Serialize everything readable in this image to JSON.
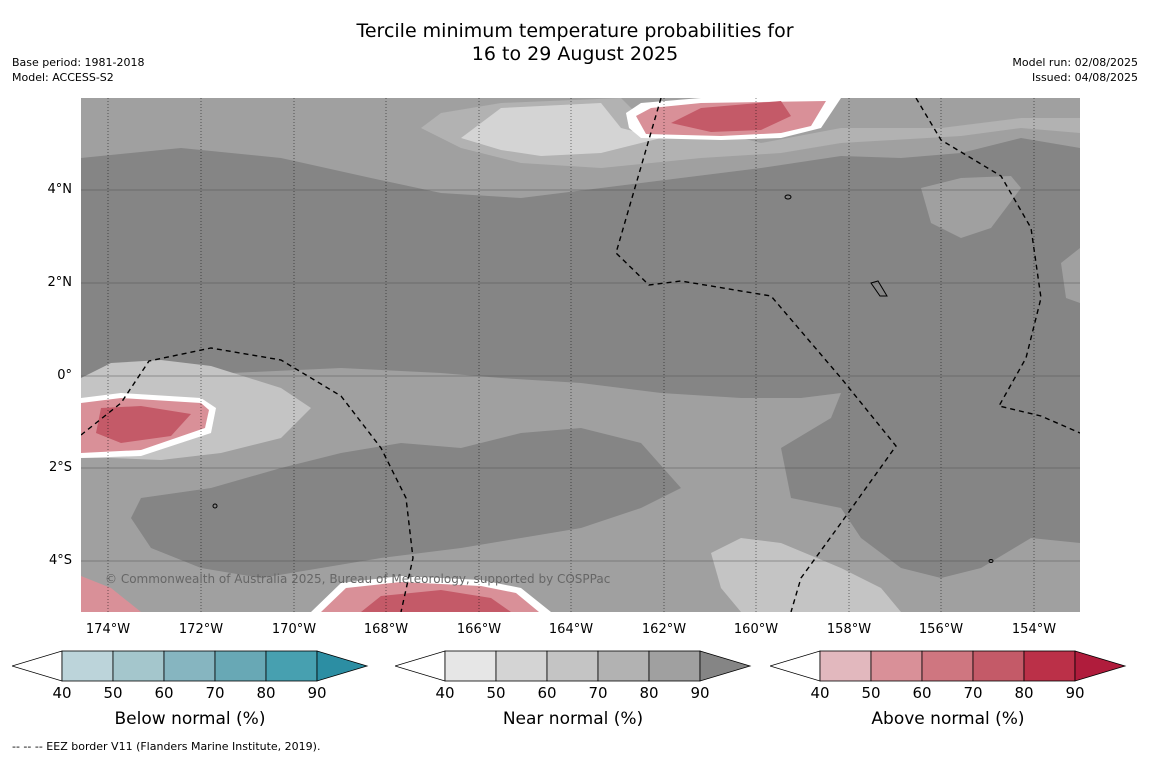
{
  "title_line1": "Tercile minimum temperature probabilities for",
  "title_line2": "16 to 29 August 2025",
  "base_period": "Base period: 1981-2018",
  "model": "Model: ACCESS-S2",
  "model_run": "Model run: 02/08/2025",
  "issued": "Issued: 04/08/2025",
  "copyright": "© Commonwealth of Australia 2025, Bureau of Meteorology, supported by COSPPac",
  "footnote": "--  --  -- EEZ border V11 (Flanders Marine Institute, 2019).",
  "lat_labels": [
    "4°N",
    "2°N",
    "0°",
    "2°S",
    "4°S"
  ],
  "lon_labels": [
    "174°W",
    "172°W",
    "170°W",
    "168°W",
    "166°W",
    "164°W",
    "162°W",
    "160°W",
    "158°W",
    "156°W",
    "154°W"
  ],
  "colorbars": [
    {
      "label": "Below normal (%)",
      "ticks": [
        "40",
        "50",
        "60",
        "70",
        "80",
        "90"
      ],
      "colors": [
        "#ffffff",
        "#bcd4da",
        "#a4c6cc",
        "#86b5c0",
        "#68a8b5",
        "#47a0b0",
        "#2c8ea3"
      ]
    },
    {
      "label": "Near normal (%)",
      "ticks": [
        "40",
        "50",
        "60",
        "70",
        "80",
        "90"
      ],
      "colors": [
        "#ffffff",
        "#e6e6e6",
        "#d4d4d4",
        "#c4c4c4",
        "#b2b2b2",
        "#a0a0a0",
        "#858585"
      ]
    },
    {
      "label": "Above normal (%)",
      "ticks": [
        "40",
        "50",
        "60",
        "70",
        "80",
        "90"
      ],
      "colors": [
        "#ffffff",
        "#e2b8be",
        "#d99098",
        "#cf7680",
        "#c45a68",
        "#bb3048",
        "#b01c3c"
      ]
    }
  ]
}
